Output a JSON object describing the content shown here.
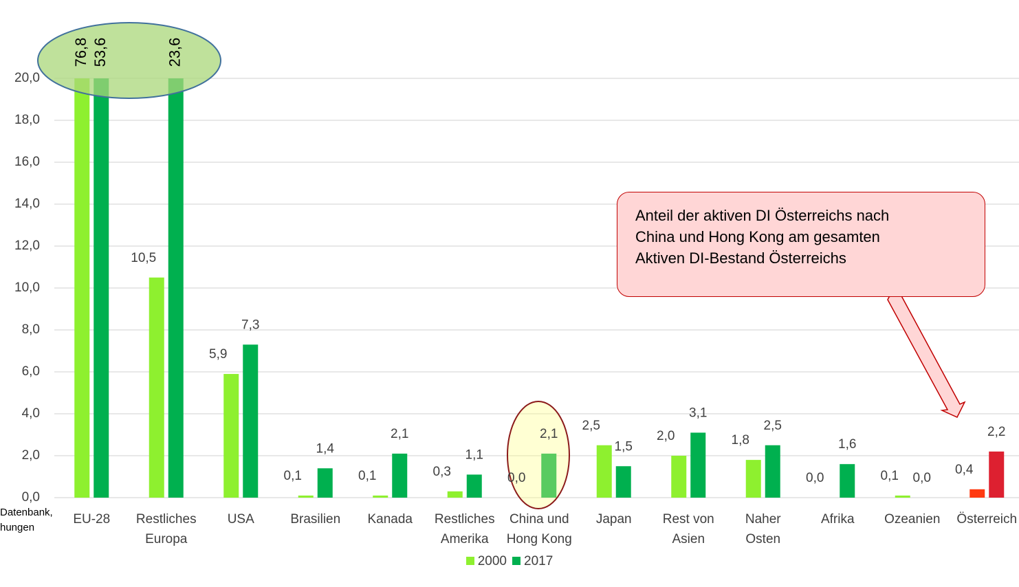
{
  "chart_data": {
    "type": "bar",
    "categories": [
      "EU-28",
      "Restliches Europa",
      "USA",
      "Brasilien",
      "Kanada",
      "Restliches Amerika",
      "China und Hong Kong",
      "Japan",
      "Rest von Asien",
      "Naher Osten",
      "Afrika",
      "Ozeanien",
      "Österreich"
    ],
    "series": [
      {
        "name": "2000",
        "color": "#8ef02f",
        "values": [
          76.8,
          10.5,
          5.9,
          0.1,
          0.1,
          0.3,
          0.0,
          2.5,
          2.0,
          1.8,
          0.0,
          0.1,
          0.4
        ],
        "value_labels": [
          "76,8",
          "10,5",
          "5,9",
          "0,1",
          "0,1",
          "0,3",
          "0,0",
          "2,5",
          "2,0",
          "1,8",
          "0,0",
          "0,1",
          "0,4"
        ],
        "colors": [
          "#8ef02f",
          "#8ef02f",
          "#8ef02f",
          "#8ef02f",
          "#8ef02f",
          "#8ef02f",
          "#8ef02f",
          "#8ef02f",
          "#8ef02f",
          "#8ef02f",
          "#8ef02f",
          "#8ef02f",
          "#ff3a10"
        ]
      },
      {
        "name": "2017",
        "color": "#00b04f",
        "values": [
          53.6,
          23.6,
          7.3,
          1.4,
          2.1,
          1.1,
          2.1,
          1.5,
          3.1,
          2.5,
          1.6,
          0.0,
          2.2
        ],
        "value_labels": [
          "53,6",
          "23,6",
          "7,3",
          "1,4",
          "2,1",
          "1,1",
          "2,1",
          "1,5",
          "3,1",
          "2,5",
          "1,6",
          "0,0",
          "2,2"
        ],
        "colors": [
          "#00b04f",
          "#00b04f",
          "#00b04f",
          "#00b04f",
          "#00b04f",
          "#00b04f",
          "#00b04f",
          "#00b04f",
          "#00b04f",
          "#00b04f",
          "#00b04f",
          "#00b04f",
          "#dd2030"
        ]
      }
    ],
    "ylim": [
      0,
      20
    ],
    "yticks": [
      {
        "value": 0,
        "label": "0,0"
      },
      {
        "value": 2,
        "label": "2,0"
      },
      {
        "value": 4,
        "label": "4,0"
      },
      {
        "value": 6,
        "label": "6,0"
      },
      {
        "value": 8,
        "label": "8,0"
      },
      {
        "value": 10,
        "label": "10,0"
      },
      {
        "value": 12,
        "label": "12,0"
      },
      {
        "value": 14,
        "label": "14,0"
      },
      {
        "value": 16,
        "label": "16,0"
      },
      {
        "value": 18,
        "label": "18,0"
      },
      {
        "value": 20,
        "label": "20,0"
      }
    ],
    "grid": true,
    "legend": "bottom",
    "annotation": "Anteil der aktiven DI Österreichs nach China und Hong Kong am gesamten Aktiven DI-Bestand Österreichs",
    "source_lines": [
      "Datenbank,",
      "hungen"
    ]
  }
}
